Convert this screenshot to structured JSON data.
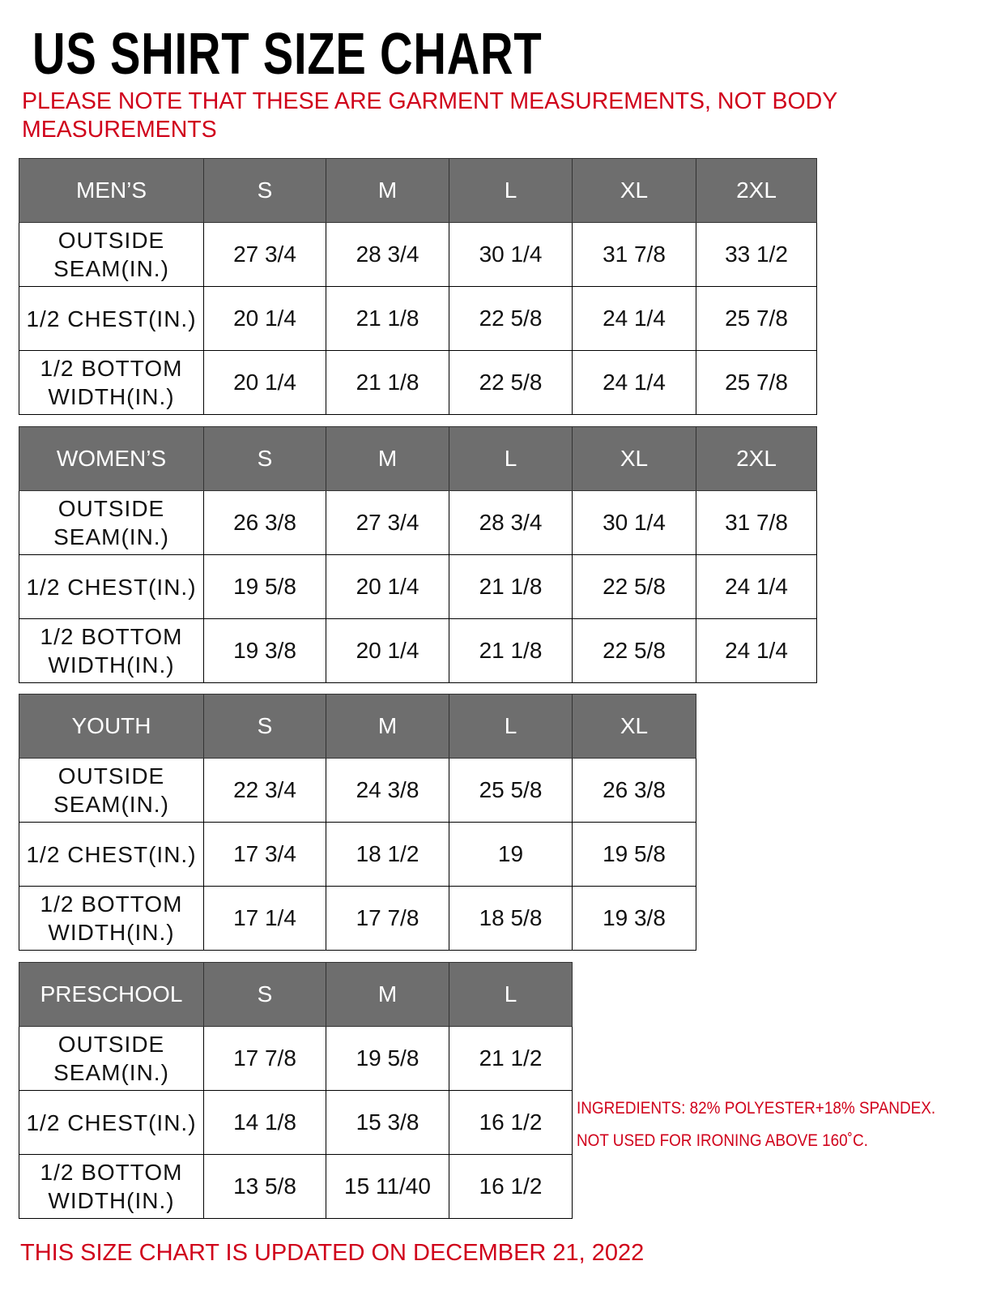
{
  "title": "US SHIRT SIZE CHART",
  "note": "PLEASE NOTE THAT THESE ARE GARMENT MEASUREMENTS, NOT BODY MEASUREMENTS",
  "colors": {
    "header_bg": "#6e6e6e",
    "accent_red": "#d0021b"
  },
  "tables": [
    {
      "name": "MEN’S",
      "sizes": [
        "S",
        "M",
        "L",
        "XL",
        "2XL"
      ],
      "rows": [
        {
          "label": "OUTSIDE SEAM(IN.)",
          "values": [
            "27 3/4",
            "28 3/4",
            "30 1/4",
            "31 7/8",
            "33 1/2"
          ]
        },
        {
          "label": "1/2 CHEST(IN.)",
          "values": [
            "20 1/4",
            "21 1/8",
            "22 5/8",
            "24 1/4",
            "25 7/8"
          ]
        },
        {
          "label": "1/2 BOTTOM WIDTH(IN.)",
          "values": [
            "20 1/4",
            "21 1/8",
            "22 5/8",
            "24 1/4",
            "25 7/8"
          ]
        }
      ]
    },
    {
      "name": "WOMEN’S",
      "sizes": [
        "S",
        "M",
        "L",
        "XL",
        "2XL"
      ],
      "rows": [
        {
          "label": "OUTSIDE SEAM(IN.)",
          "values": [
            "26 3/8",
            "27 3/4",
            "28 3/4",
            "30 1/4",
            "31 7/8"
          ]
        },
        {
          "label": "1/2 CHEST(IN.)",
          "values": [
            "19 5/8",
            "20 1/4",
            "21 1/8",
            "22 5/8",
            "24 1/4"
          ]
        },
        {
          "label": "1/2 BOTTOM WIDTH(IN.)",
          "values": [
            "19 3/8",
            "20 1/4",
            "21 1/8",
            "22 5/8",
            "24 1/4"
          ]
        }
      ]
    },
    {
      "name": "YOUTH",
      "sizes": [
        "S",
        "M",
        "L",
        "XL"
      ],
      "rows": [
        {
          "label": "OUTSIDE SEAM(IN.)",
          "values": [
            "22 3/4",
            "24 3/8",
            "25 5/8",
            "26 3/8"
          ]
        },
        {
          "label": "1/2 CHEST(IN.)",
          "values": [
            "17 3/4",
            "18 1/2",
            "19",
            "19 5/8"
          ]
        },
        {
          "label": "1/2 BOTTOM WIDTH(IN.)",
          "values": [
            "17 1/4",
            "17 7/8",
            "18 5/8",
            "19 3/8"
          ]
        }
      ]
    },
    {
      "name": "PRESCHOOL",
      "sizes": [
        "S",
        "M",
        "L"
      ],
      "rows": [
        {
          "label": "OUTSIDE SEAM(IN.)",
          "values": [
            "17 7/8",
            "19 5/8",
            "21 1/2"
          ]
        },
        {
          "label": "1/2 CHEST(IN.)",
          "values": [
            "14 1/8",
            "15 3/8",
            "16 1/2"
          ]
        },
        {
          "label": "1/2 BOTTOM WIDTH(IN.)",
          "values": [
            "13 5/8",
            "15 11/40",
            "16 1/2"
          ]
        }
      ]
    }
  ],
  "ingredients": "INGREDIENTS: 82% POLYESTER+18% SPANDEX.",
  "ironing": "NOT USED FOR IRONING ABOVE 160˚C.",
  "footer": "THIS SIZE CHART IS UPDATED ON DECEMBER 21, 2022"
}
